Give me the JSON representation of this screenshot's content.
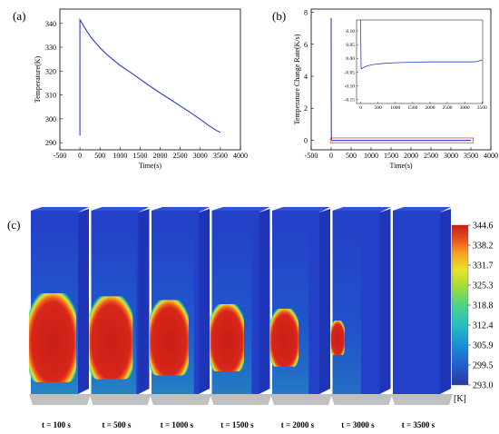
{
  "panels": {
    "a": {
      "label": "(a)"
    },
    "b": {
      "label": "(b)"
    },
    "c": {
      "label": "(c)"
    }
  },
  "colors": {
    "line": "#2b3bd0",
    "inset_box": "#e03030",
    "colormap": [
      "#283a96",
      "#2356c9",
      "#1a8fd3",
      "#25c1c0",
      "#4fd384",
      "#a5dc38",
      "#eae22b",
      "#f5a623",
      "#ea5a1e",
      "#c81e16"
    ]
  },
  "chart_data": [
    {
      "type": "line",
      "panel": "a",
      "xlabel": "Time(s)",
      "ylabel": "Temperature(K)",
      "xlim": [
        -500,
        4000
      ],
      "ylim": [
        287,
        346
      ],
      "xticks": [
        -500,
        0,
        500,
        1000,
        1500,
        2000,
        2500,
        3000,
        3500,
        4000
      ],
      "yticks": [
        290,
        300,
        310,
        320,
        330,
        340
      ],
      "series": [
        {
          "x": [
            0,
            0,
            20,
            100,
            200,
            300,
            500,
            700,
            1000,
            1300,
            1500,
            1700,
            2000,
            2300,
            2500,
            2800,
            3000,
            3200,
            3400,
            3500
          ],
          "y": [
            293,
            341.5,
            341,
            338.7,
            336,
            333.6,
            329.8,
            326.5,
            322.4,
            319,
            316.6,
            314.2,
            310.8,
            307.6,
            305.4,
            302.1,
            299.8,
            297.3,
            295.1,
            294.4
          ]
        }
      ]
    },
    {
      "type": "line",
      "panel": "b",
      "xlabel": "Time(s)",
      "ylabel": "Temperature Change Rate(K/s)",
      "xlim": [
        -500,
        4000
      ],
      "ylim": [
        -0.6,
        8.2
      ],
      "xticks": [
        -500,
        0,
        500,
        1000,
        1500,
        2000,
        2500,
        3000,
        3500,
        4000
      ],
      "yticks": [
        0,
        2,
        4,
        6,
        8
      ],
      "series": [
        {
          "x": [
            0,
            2,
            4,
            8,
            20,
            100,
            500,
            1000,
            2000,
            3000,
            3500
          ],
          "y": [
            7.65,
            2.5,
            0.5,
            0.05,
            -0.02,
            -0.018,
            -0.015,
            -0.014,
            -0.013,
            -0.013,
            -0.007
          ]
        }
      ],
      "inset": {
        "xlim": [
          -120,
          3520
        ],
        "ylim": [
          -0.165,
          0.14
        ],
        "xticks": [
          0,
          500,
          1000,
          1500,
          2000,
          2500,
          3000,
          3500
        ],
        "yticks": [
          -0.15,
          -0.1,
          -0.05,
          0.0,
          0.05,
          0.1
        ],
        "ytick_labels": [
          "-0.15",
          "-0.10",
          "-0.05",
          "0.00",
          "0.05",
          "0.10"
        ],
        "series": [
          {
            "x": [
              0,
              2,
              10,
              20,
              40,
              60,
              100,
              200,
              400,
              700,
              1000,
              1500,
              2000,
              2500,
              3000,
              3200,
              3350,
              3450,
              3500
            ],
            "y": [
              0.14,
              0.05,
              -0.03,
              -0.038,
              -0.037,
              -0.035,
              -0.032,
              -0.027,
              -0.022,
              -0.018,
              -0.016,
              -0.014,
              -0.013,
              -0.013,
              -0.013,
              -0.013,
              -0.012,
              -0.008,
              -0.006
            ]
          }
        ]
      }
    },
    {
      "type": "heatmap",
      "panel": "c",
      "colorbar": {
        "ticks": [
          "344.6",
          "338.2",
          "331.7",
          "325.3",
          "318.8",
          "312.4",
          "305.9",
          "299.5",
          "293.0"
        ],
        "unit": "[K]"
      },
      "snapshots": [
        {
          "label": "t = 100 s",
          "hot_fraction": 1.0
        },
        {
          "label": "t = 500 s",
          "hot_fraction": 0.9
        },
        {
          "label": "t = 1000 s",
          "hot_fraction": 0.78
        },
        {
          "label": "t = 1500 s",
          "hot_fraction": 0.65
        },
        {
          "label": "t = 2000 s",
          "hot_fraction": 0.5
        },
        {
          "label": "t = 3000 s",
          "hot_fraction": 0.12
        },
        {
          "label": "t = 3500 s",
          "hot_fraction": 0.0
        }
      ]
    }
  ]
}
